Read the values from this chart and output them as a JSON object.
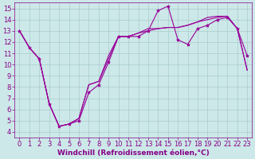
{
  "xlabel": "Windchill (Refroidissement éolien,°C)",
  "xlim": [
    -0.5,
    23.5
  ],
  "ylim": [
    3.5,
    15.5
  ],
  "xticks": [
    0,
    1,
    2,
    3,
    4,
    5,
    6,
    7,
    8,
    9,
    10,
    11,
    12,
    13,
    14,
    15,
    16,
    17,
    18,
    19,
    20,
    21,
    22,
    23
  ],
  "yticks": [
    4,
    5,
    6,
    7,
    8,
    9,
    10,
    11,
    12,
    13,
    14,
    15
  ],
  "background_color": "#cce8e8",
  "line_color": "#990099",
  "grid_color": "#aacccc",
  "line1_y": [
    13.0,
    11.5,
    10.5,
    6.5,
    4.5,
    4.7,
    5.0,
    7.5,
    8.2,
    10.2,
    12.5,
    12.5,
    12.5,
    13.0,
    14.8,
    15.2,
    12.2,
    11.8,
    13.2,
    13.5,
    14.0,
    14.2,
    13.2,
    10.8
  ],
  "line2_y": [
    13.0,
    11.5,
    10.5,
    6.5,
    4.5,
    4.7,
    5.2,
    8.2,
    8.5,
    10.5,
    12.5,
    12.5,
    12.8,
    13.2,
    13.2,
    13.3,
    13.3,
    13.5,
    13.8,
    14.0,
    14.2,
    14.3,
    13.2,
    9.5
  ],
  "line3_y": [
    13.0,
    11.5,
    10.5,
    6.5,
    4.5,
    4.7,
    5.2,
    8.2,
    8.5,
    10.8,
    12.5,
    12.5,
    12.8,
    13.0,
    13.2,
    13.3,
    13.3,
    13.5,
    13.8,
    14.2,
    14.3,
    14.3,
    13.2,
    9.5
  ],
  "fontsize_label": 6.5,
  "fontsize_tick": 6,
  "tick_color": "#880088",
  "label_color": "#880088"
}
